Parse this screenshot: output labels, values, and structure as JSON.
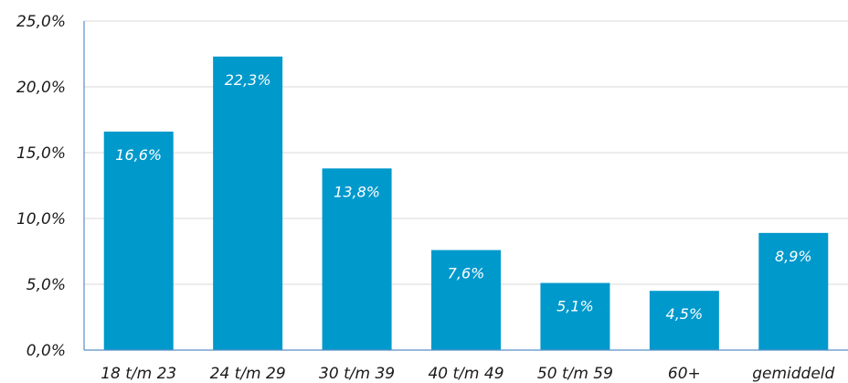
{
  "chart_data": {
    "type": "bar",
    "categories": [
      "18 t/m 23",
      "24 t/m 29",
      "30 t/m 39",
      "40 t/m 49",
      "50 t/m 59",
      "60+",
      "gemiddeld"
    ],
    "values": [
      16.6,
      22.3,
      13.8,
      7.6,
      5.1,
      4.5,
      8.9
    ],
    "value_labels": [
      "16,6%",
      "22,3%",
      "13,8%",
      "7,6%",
      "5,1%",
      "4,5%",
      "8,9%"
    ],
    "yticks": [
      0,
      5,
      10,
      15,
      20,
      25
    ],
    "ytick_labels": [
      "0,0%",
      "5,0%",
      "10,0%",
      "15,0%",
      "20,0%",
      "25,0%"
    ],
    "ylim": [
      0,
      25
    ],
    "grid": true,
    "bar_color": "#0099cc",
    "grid_color": "#d9d9d9",
    "axis_color": "#5b8fc7"
  }
}
